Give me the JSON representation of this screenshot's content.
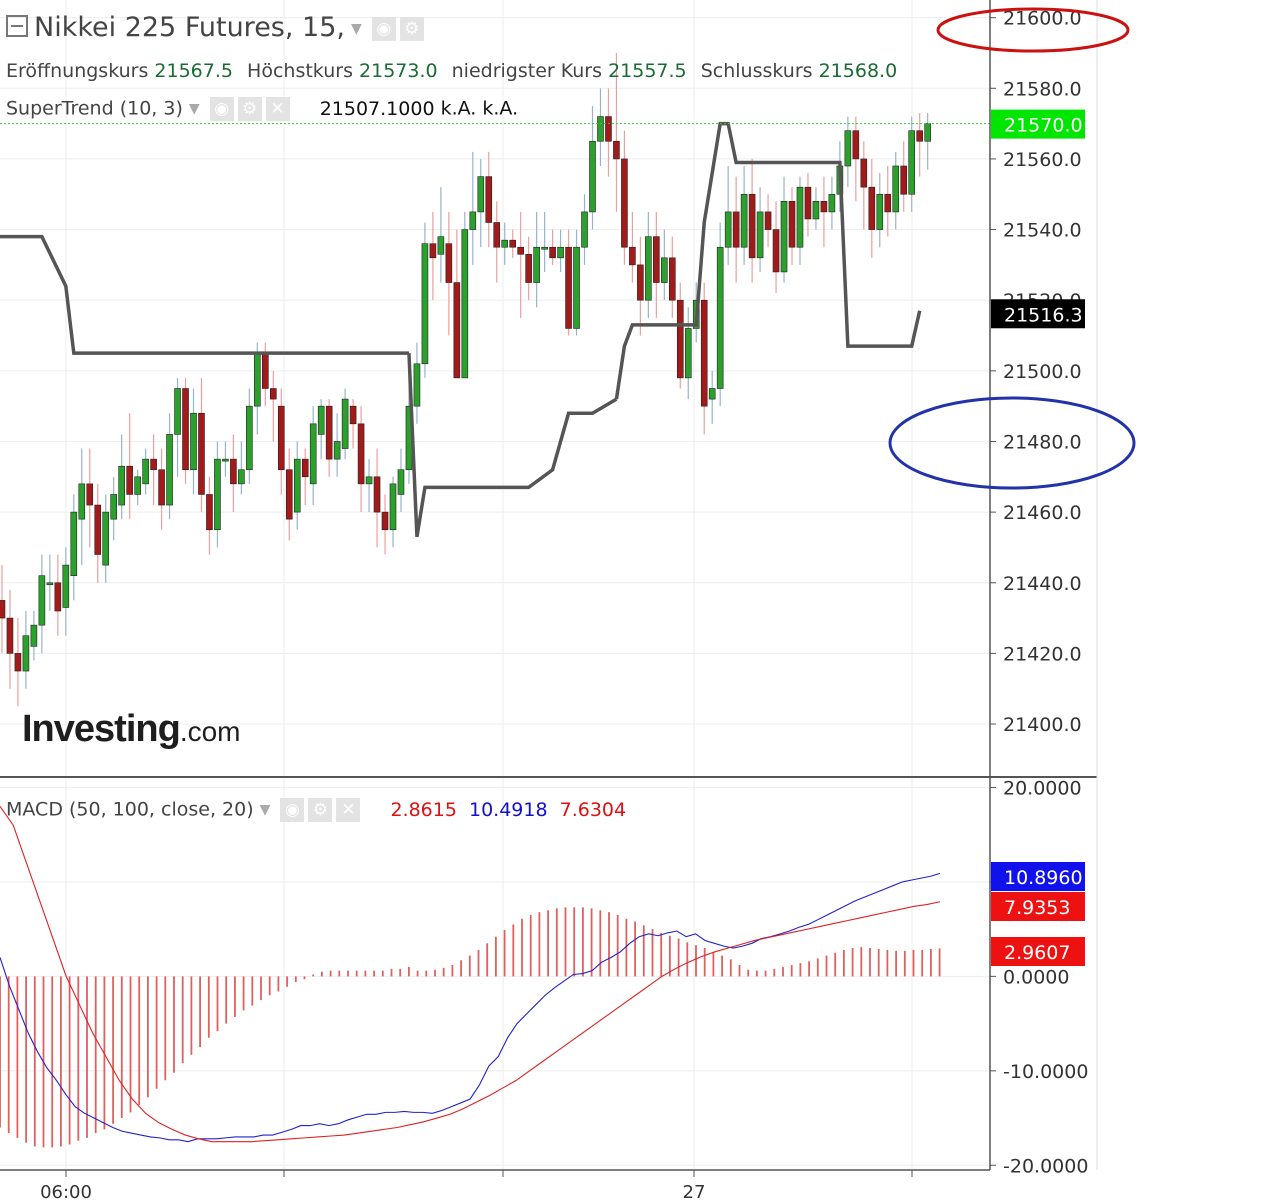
{
  "title": "Nikkei 225 Futures, 15,",
  "ohlc": {
    "open_label": "Eröffnungskurs",
    "open": "21567.5",
    "high_label": "Höchstkurs",
    "high": "21573.0",
    "low_label": "niedrigster Kurs",
    "low": "21557.5",
    "close_label": "Schlusskurs",
    "close": "21568.0"
  },
  "supertrend": {
    "label": "SuperTrend (10, 3)",
    "value": "21507.1000",
    "na1": "k.A.",
    "na2": "k.A."
  },
  "macd": {
    "label": "MACD (50, 100, close, 20)",
    "v1": "2.8615",
    "v2": "10.4918",
    "v3": "7.6304"
  },
  "logo": {
    "big": "Investing",
    "small": ".com"
  },
  "colors": {
    "up": "#2ca02c",
    "down": "#a31a1a",
    "supertrend": "#555555",
    "macd": "#2222cc",
    "signal": "#dd2222",
    "hist": "#e06060",
    "price_badge": "#00e600"
  },
  "chart_data": [
    {
      "type": "candlestick",
      "title": "Nikkei 225 Futures, 15,",
      "ylim": [
        21385,
        21605
      ],
      "y_ticks": [
        "21600.0",
        "21580.0",
        "21560.0",
        "21540.0",
        "21520.0",
        "21500.0",
        "21480.0",
        "21460.0",
        "21440.0",
        "21420.0",
        "21400.0"
      ],
      "y_tick_values": [
        21600,
        21580,
        21560,
        21540,
        21520,
        21500,
        21480,
        21460,
        21440,
        21420,
        21400
      ],
      "x_ticks": [
        {
          "label": "06:00",
          "index": 7
        },
        {
          "label": "27",
          "index": 78
        }
      ],
      "badges": [
        {
          "label": "21570.0",
          "value": 21570,
          "color": "#00e600",
          "text": "#ffffff"
        },
        {
          "label": "21516.3",
          "value": 21516.3,
          "color": "#000000",
          "text": "#ffffff"
        }
      ],
      "candles": [
        [
          21410,
          21440,
          21395,
          21445
        ],
        [
          21435,
          21430,
          21420,
          21445
        ],
        [
          21430,
          21420,
          21410,
          21438
        ],
        [
          21420,
          21415,
          21405,
          21430
        ],
        [
          21415,
          21425,
          21410,
          21432
        ],
        [
          21422,
          21428,
          21418,
          21432
        ],
        [
          21428,
          21442,
          21420,
          21448
        ],
        [
          21440,
          21440,
          21432,
          21448
        ],
        [
          21440,
          21432,
          21425,
          21448
        ],
        [
          21433,
          21445,
          21425,
          21450
        ],
        [
          21442,
          21460,
          21435,
          21465
        ],
        [
          21458,
          21468,
          21445,
          21478
        ],
        [
          21468,
          21462,
          21450,
          21478
        ],
        [
          21462,
          21448,
          21440,
          21468
        ],
        [
          21445,
          21460,
          21440,
          21465
        ],
        [
          21458,
          21465,
          21452,
          21470
        ],
        [
          21462,
          21473,
          21458,
          21482
        ],
        [
          21473,
          21465,
          21458,
          21488
        ],
        [
          21465,
          21470,
          21462,
          21472
        ],
        [
          21468,
          21475,
          21465,
          21478
        ],
        [
          21475,
          21472,
          21462,
          21482
        ],
        [
          21472,
          21462,
          21455,
          21478
        ],
        [
          21462,
          21482,
          21458,
          21488
        ],
        [
          21482,
          21495,
          21470,
          21498
        ],
        [
          21495,
          21472,
          21468,
          21498
        ],
        [
          21472,
          21488,
          21465,
          21495
        ],
        [
          21488,
          21465,
          21460,
          21498
        ],
        [
          21465,
          21455,
          21448,
          21470
        ],
        [
          21455,
          21475,
          21450,
          21480
        ],
        [
          21475,
          21475,
          21470,
          21480
        ],
        [
          21475,
          21468,
          21460,
          21482
        ],
        [
          21468,
          21472,
          21465,
          21480
        ],
        [
          21472,
          21490,
          21468,
          21495
        ],
        [
          21490,
          21505,
          21482,
          21508
        ],
        [
          21505,
          21495,
          21490,
          21508
        ],
        [
          21495,
          21492,
          21480,
          21500
        ],
        [
          21490,
          21472,
          21465,
          21495
        ],
        [
          21472,
          21458,
          21452,
          21478
        ],
        [
          21460,
          21475,
          21455,
          21480
        ],
        [
          21475,
          21470,
          21462,
          21478
        ],
        [
          21468,
          21485,
          21462,
          21490
        ],
        [
          21482,
          21490,
          21475,
          21492
        ],
        [
          21490,
          21475,
          21470,
          21492
        ],
        [
          21475,
          21480,
          21470,
          21488
        ],
        [
          21478,
          21492,
          21475,
          21495
        ],
        [
          21490,
          21485,
          21478,
          21492
        ],
        [
          21485,
          21468,
          21460,
          21490
        ],
        [
          21468,
          21470,
          21460,
          21475
        ],
        [
          21470,
          21460,
          21450,
          21478
        ],
        [
          21460,
          21455,
          21448,
          21465
        ],
        [
          21455,
          21468,
          21450,
          21470
        ],
        [
          21465,
          21472,
          21460,
          21478
        ],
        [
          21472,
          21490,
          21468,
          21498
        ],
        [
          21490,
          21502,
          21485,
          21508
        ],
        [
          21502,
          21536,
          21498,
          21542
        ],
        [
          21536,
          21532,
          21520,
          21545
        ],
        [
          21533,
          21538,
          21525,
          21552
        ],
        [
          21536,
          21525,
          21510,
          21545
        ],
        [
          21525,
          21498,
          21498,
          21540
        ],
        [
          21498,
          21540,
          21498,
          21545
        ],
        [
          21540,
          21545,
          21530,
          21562
        ],
        [
          21545,
          21555,
          21535,
          21560
        ],
        [
          21555,
          21542,
          21535,
          21562
        ],
        [
          21542,
          21535,
          21525,
          21548
        ],
        [
          21535,
          21537,
          21530,
          21542
        ],
        [
          21537,
          21535,
          21532,
          21540
        ],
        [
          21535,
          21533,
          21515,
          21545
        ],
        [
          21533,
          21525,
          21520,
          21538
        ],
        [
          21525,
          21535,
          21518,
          21545
        ],
        [
          21535,
          21535,
          21528,
          21545
        ],
        [
          21535,
          21532,
          21530,
          21540
        ],
        [
          21532,
          21535,
          21528,
          21540
        ],
        [
          21535,
          21512,
          21510,
          21540
        ],
        [
          21512,
          21535,
          21510,
          21540
        ],
        [
          21535,
          21545,
          21530,
          21550
        ],
        [
          21545,
          21565,
          21540,
          21575
        ],
        [
          21565,
          21572,
          21558,
          21580
        ],
        [
          21572,
          21565,
          21555,
          21580
        ],
        [
          21565,
          21560,
          21545,
          21590
        ],
        [
          21560,
          21535,
          21530,
          21568
        ],
        [
          21535,
          21530,
          21525,
          21545
        ],
        [
          21530,
          21520,
          21510,
          21538
        ],
        [
          21520,
          21538,
          21515,
          21545
        ],
        [
          21538,
          21525,
          21515,
          21545
        ],
        [
          21525,
          21532,
          21520,
          21540
        ],
        [
          21532,
          21520,
          21515,
          21538
        ],
        [
          21520,
          21498,
          21495,
          21525
        ],
        [
          21498,
          21512,
          21492,
          21518
        ],
        [
          21512,
          21520,
          21508,
          21525
        ],
        [
          21520,
          21490,
          21482,
          21525
        ],
        [
          21492,
          21495,
          21485,
          21500
        ],
        [
          21495,
          21535,
          21490,
          21542
        ],
        [
          21535,
          21545,
          21530,
          21558
        ],
        [
          21545,
          21535,
          21525,
          21555
        ],
        [
          21535,
          21550,
          21530,
          21558
        ],
        [
          21550,
          21532,
          21525,
          21560
        ],
        [
          21532,
          21545,
          21528,
          21552
        ],
        [
          21545,
          21540,
          21535,
          21550
        ],
        [
          21540,
          21528,
          21522,
          21548
        ],
        [
          21528,
          21548,
          21525,
          21555
        ],
        [
          21548,
          21535,
          21530,
          21552
        ],
        [
          21535,
          21552,
          21530,
          21555
        ],
        [
          21552,
          21543,
          21538,
          21556
        ],
        [
          21543,
          21548,
          21540,
          21552
        ],
        [
          21548,
          21545,
          21535,
          21555
        ],
        [
          21545,
          21550,
          21540,
          21555
        ],
        [
          21550,
          21558,
          21545,
          21565
        ],
        [
          21558,
          21568,
          21552,
          21572
        ],
        [
          21568,
          21560,
          21548,
          21572
        ],
        [
          21560,
          21552,
          21540,
          21565
        ],
        [
          21552,
          21540,
          21532,
          21560
        ],
        [
          21540,
          21550,
          21535,
          21556
        ],
        [
          21550,
          21545,
          21538,
          21558
        ],
        [
          21545,
          21558,
          21540,
          21562
        ],
        [
          21558,
          21550,
          21545,
          21565
        ],
        [
          21550,
          21568,
          21545,
          21572
        ],
        [
          21568,
          21565,
          21555,
          21573
        ],
        [
          21565,
          21570,
          21557,
          21573
        ]
      ],
      "supertrend_line": [
        21538,
        21538,
        21538,
        21538,
        21538,
        21538,
        21532,
        21524,
        21519,
        21505,
        21505,
        21505,
        21505,
        21505,
        21505,
        21505,
        21505,
        21505,
        21505,
        21505,
        21505,
        21505,
        21505,
        21505,
        21505,
        21505,
        21505,
        21505,
        21505,
        21505,
        21505,
        21505,
        21505,
        21505,
        21505,
        21505,
        21505,
        21505,
        21505,
        21505,
        21505,
        21505,
        21505,
        21505,
        21505,
        21505,
        21505,
        21505,
        21505,
        21505,
        21505,
        21505,
        21505,
        21505,
        21505,
        21505,
        21505,
        21505,
        21505,
        21505,
        21505,
        21505,
        21505,
        21505,
        21505,
        21505,
        21505,
        21505,
        21505,
        21505,
        21505,
        21505,
        21505,
        21505,
        21505,
        21505,
        21505,
        21505,
        21505,
        21505,
        21505,
        21505,
        21505,
        21505,
        21505,
        21505,
        21505,
        21505,
        21505,
        21505,
        21505,
        21505,
        21505,
        21505,
        21505,
        21505,
        21505,
        21505,
        21505,
        21505,
        21505,
        21505,
        21505,
        21505,
        21505,
        21505,
        21505,
        21505,
        21505,
        21505,
        21505,
        21505,
        21505,
        21505,
        21505,
        21505
      ],
      "supertrend_segments": [
        {
          "idx": [
            0,
            6,
            9,
            10,
            52
          ],
          "val": [
            21538,
            21538,
            21524,
            21505,
            21505
          ]
        },
        {
          "idx": [
            52,
            53,
            54,
            67,
            70,
            72,
            75,
            78
          ],
          "val": [
            21505,
            21453,
            21467,
            21467,
            21472,
            21488,
            21488,
            21492
          ]
        },
        {
          "idx": [
            78,
            79,
            80,
            82,
            84,
            88,
            89,
            91,
            92,
            93,
            106,
            107,
            115,
            116
          ],
          "val": [
            21492,
            21507,
            21513,
            21513,
            21513,
            21513,
            21542,
            21570,
            21570,
            21559,
            21559,
            21507,
            21507,
            21517
          ]
        }
      ]
    },
    {
      "type": "macd",
      "title": "MACD (50, 100, close, 20)",
      "ylim": [
        -20.5,
        21
      ],
      "y_ticks": [
        "20.0000",
        "10.0000",
        "0.0000",
        "-10.0000",
        "-20.0000"
      ],
      "y_tick_values": [
        20,
        10,
        0,
        -10,
        -20
      ],
      "badges": [
        {
          "label": "10.8960",
          "value": 10.896,
          "color": "#1111ee",
          "text": "#ffffff"
        },
        {
          "label": "7.9353",
          "value": 7.9353,
          "color": "#ee1111",
          "text": "#ffffff"
        },
        {
          "label": "2.9607",
          "value": 2.9607,
          "color": "#ee1111",
          "text": "#ffffff"
        }
      ],
      "macd_line": [
        2,
        -1,
        -3.5,
        -6,
        -8,
        -9.7,
        -11,
        -12.5,
        -13.8,
        -14.5,
        -15,
        -15.5,
        -16,
        -16.4,
        -16.6,
        -16.8,
        -17,
        -17.1,
        -17.3,
        -17.3,
        -17.5,
        -17.2,
        -17.2,
        -17.2,
        -17.1,
        -17.0,
        -17.0,
        -17.0,
        -16.8,
        -16.8,
        -16.5,
        -16.2,
        -15.8,
        -15.8,
        -15.6,
        -15.8,
        -15.6,
        -15.2,
        -14.9,
        -14.6,
        -14.6,
        -14.4,
        -14.4,
        -14.3,
        -14.4,
        -14.4,
        -14.5,
        -14.2,
        -13.8,
        -13.4,
        -13.0,
        -11.5,
        -9.5,
        -8.5,
        -6.5,
        -5,
        -4,
        -3,
        -2,
        -1.2,
        -0.5,
        0.2,
        0.3,
        0.6,
        1.5,
        2,
        2.6,
        3.5,
        4.2,
        4.5,
        4.3,
        4.6,
        4.8,
        4.2,
        4.5,
        3.8,
        3.5,
        3.2,
        3,
        3.2,
        3.5,
        4,
        4.2,
        4.5,
        4.8,
        5.2,
        5.5,
        6,
        6.5,
        7,
        7.5,
        8,
        8.4,
        8.8,
        9.2,
        9.6,
        10.0,
        10.2,
        10.4,
        10.6,
        10.9
      ],
      "signal_line": [
        18,
        16,
        12,
        8,
        4,
        0,
        -3,
        -6,
        -8.5,
        -11,
        -13,
        -14.5,
        -15.5,
        -16.2,
        -16.8,
        -17.2,
        -17.5,
        -17.5,
        -17.5,
        -17.5,
        -17.4,
        -17.3,
        -17.2,
        -17.1,
        -17.0,
        -16.9,
        -16.8,
        -16.6,
        -16.4,
        -16.2,
        -16.0,
        -15.7,
        -15.4,
        -15.0,
        -14.6,
        -14.0,
        -13.3,
        -12.6,
        -11.8,
        -11.0,
        -10.0,
        -9.0,
        -8.0,
        -7.0,
        -6.0,
        -5.0,
        -4.0,
        -3.0,
        -2.0,
        -1.0,
        0,
        0.8,
        1.5,
        2.1,
        2.6,
        3.0,
        3.4,
        3.8,
        4.1,
        4.4,
        4.7,
        5.0,
        5.3,
        5.6,
        5.9,
        6.2,
        6.5,
        6.8,
        7.1,
        7.4,
        7.6,
        7.9
      ],
      "histogram": [
        -16,
        -16.6,
        -17.1,
        -17.6,
        -18,
        -18.1,
        -18.1,
        -18,
        -17.8,
        -17.4,
        -17.1,
        -16.6,
        -16.2,
        -15.6,
        -15,
        -14.4,
        -13.6,
        -12.8,
        -11.9,
        -11,
        -10.2,
        -9.2,
        -8.3,
        -7.5,
        -6.5,
        -5.8,
        -5,
        -4.3,
        -3.6,
        -3.1,
        -2.5,
        -2.0,
        -1.6,
        -1.1,
        -0.6,
        -0.3,
        0.2,
        0.5,
        0.6,
        0.6,
        0.6,
        0.6,
        0.6,
        0.6,
        0.6,
        0.8,
        0.8,
        1.0,
        0.6,
        0.6,
        0.7,
        0.9,
        1.2,
        1.7,
        2.2,
        2.8,
        3.5,
        4.2,
        4.9,
        5.5,
        6.1,
        6.5,
        6.8,
        7.0,
        7.2,
        7.3,
        7.3,
        7.3,
        7.2,
        7.0,
        6.8,
        6.5,
        6.1,
        5.8,
        5.4,
        5.0,
        4.6,
        4.3,
        4.0,
        3.6,
        3.3,
        3.0,
        2.6,
        2.2,
        1.8,
        1.2,
        0.7,
        0.6,
        0.6,
        0.8,
        1.0,
        1.2,
        1.4,
        1.6,
        1.9,
        2.2,
        2.5,
        2.8,
        3.0,
        3.1,
        3.0,
        2.9,
        2.8,
        2.7,
        2.7,
        2.8,
        2.8,
        2.9,
        2.96
      ]
    }
  ]
}
